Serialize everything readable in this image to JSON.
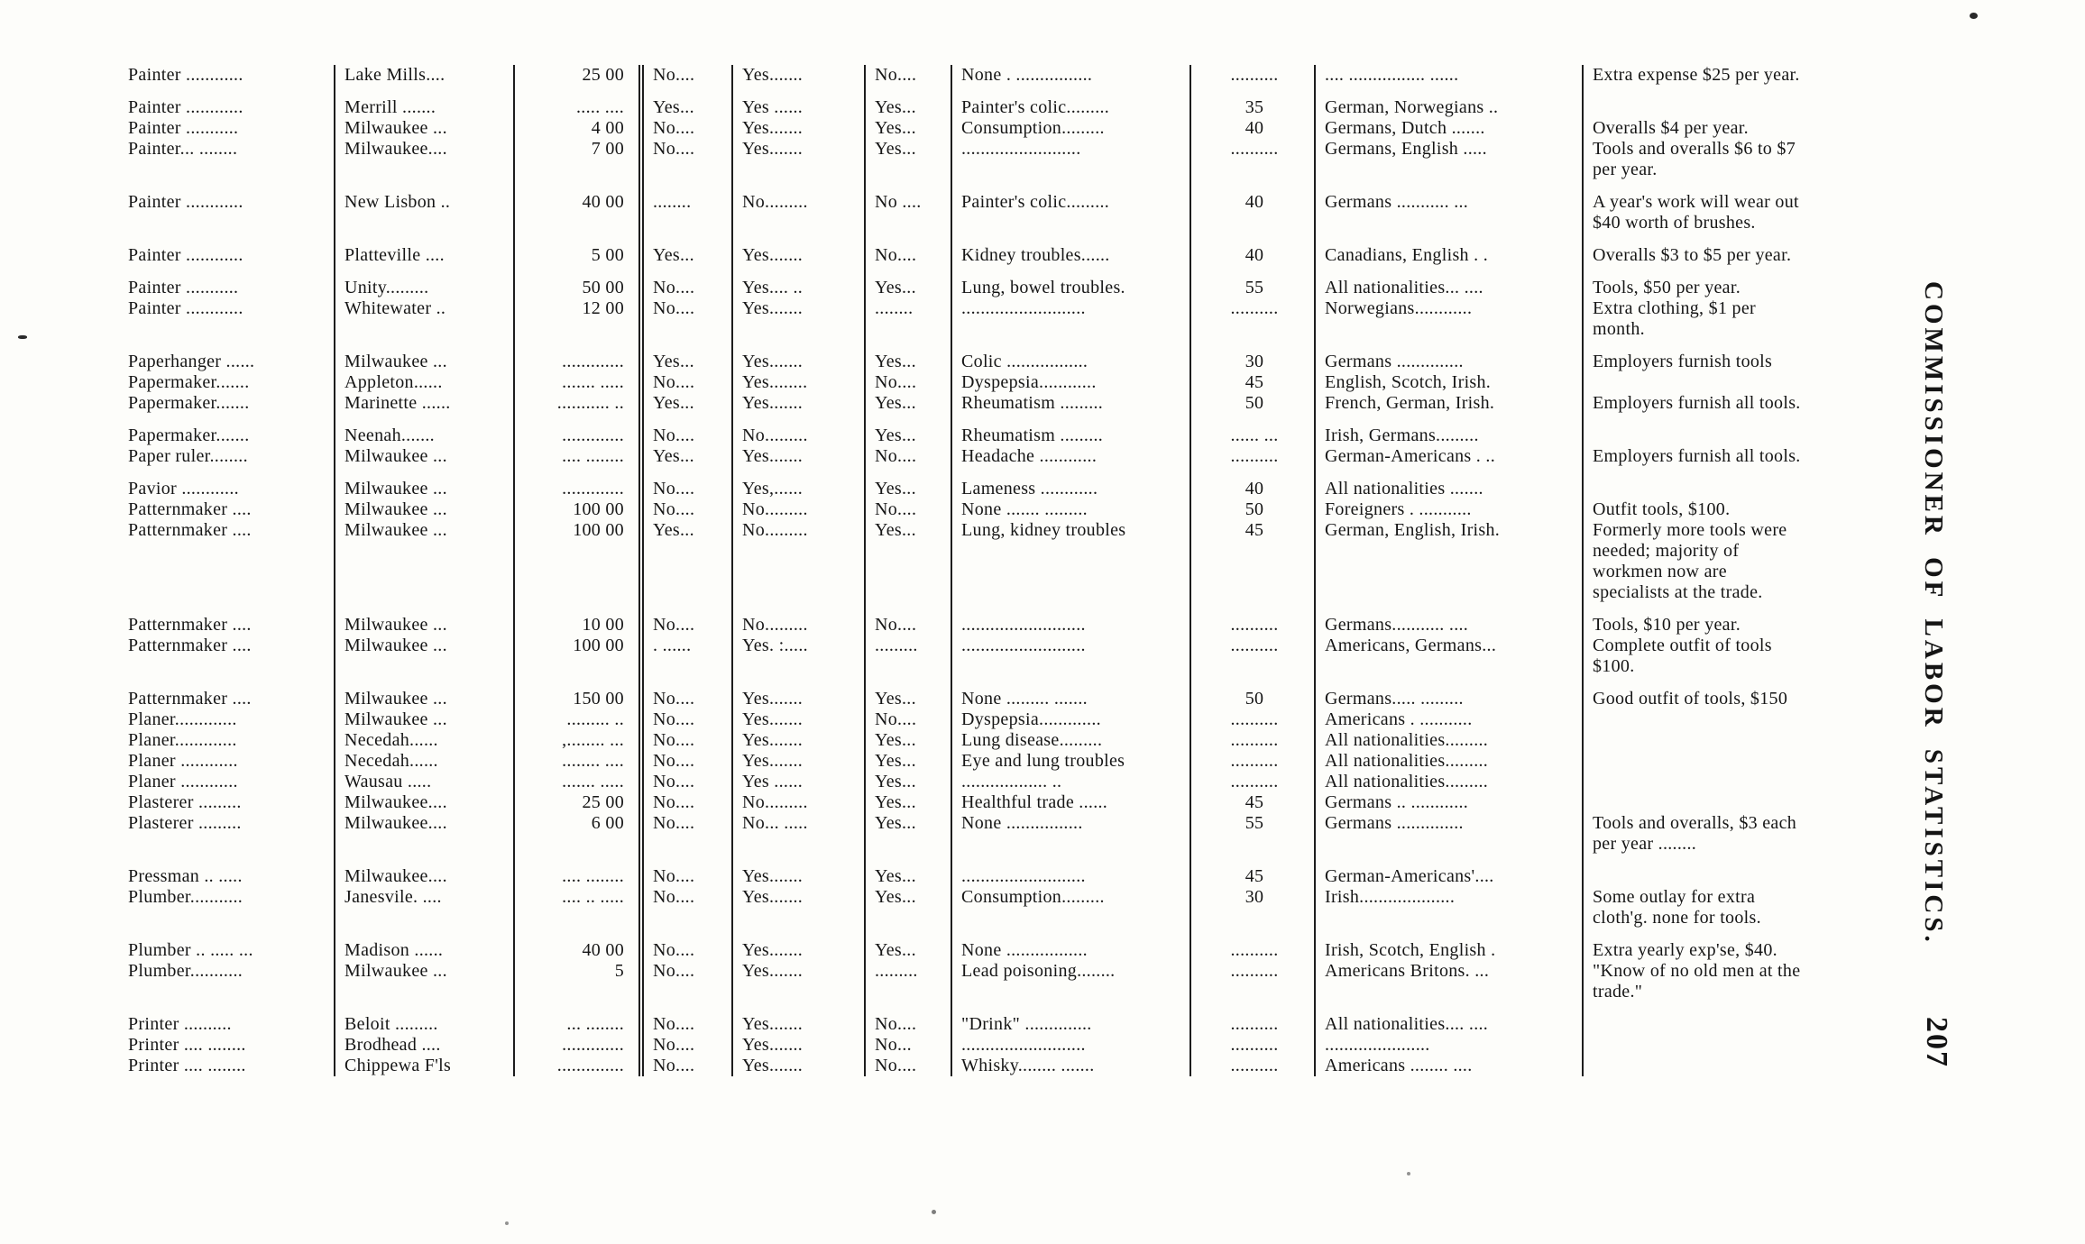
{
  "page": {
    "side_caption": "COMMISSIONER OF LABOR STATISTICS.",
    "page_number": "207"
  },
  "table": {
    "columns": [
      "occupation",
      "location",
      "amount",
      "q1",
      "q2",
      "q3",
      "disease",
      "age",
      "nationality",
      "remarks"
    ],
    "rows": [
      {
        "group_start": false,
        "cells": [
          "Painter ............",
          "Lake Mills....",
          "25 00",
          "No....",
          "Yes.......",
          "No....",
          "None . ................",
          "..........",
          ".... ................ ......",
          "Extra expense $25 per year."
        ]
      },
      {
        "group_start": true,
        "cells": [
          "Painter ............",
          "Merrill .......",
          "..... ....",
          "Yes...",
          "Yes ......",
          "Yes...",
          "Painter's colic.........",
          "35",
          "German, Norwegians ..",
          ""
        ]
      },
      {
        "group_start": false,
        "cells": [
          "Painter ...........",
          "Milwaukee ...",
          "4 00",
          "No....",
          "Yes.......",
          "Yes...",
          "Consumption.........",
          "40",
          "Germans, Dutch .......",
          "Overalls $4 per year."
        ]
      },
      {
        "group_start": false,
        "cells": [
          "Painter... ........",
          "Milwaukee....",
          "7 00",
          "No....",
          "Yes.......",
          "Yes...",
          ".........................",
          "..........",
          "Germans, English .....",
          "Tools and overalls $6 to $7 per year."
        ]
      },
      {
        "group_start": true,
        "cells": [
          "Painter ............",
          "New Lisbon ..",
          "40 00",
          "........",
          "No.........",
          "No ....",
          "Painter's colic.........",
          "40",
          "Germans ........... ...",
          "A year's work will wear out $40 worth of brushes."
        ]
      },
      {
        "group_start": true,
        "cells": [
          "Painter ............",
          "Platteville ....",
          "5 00",
          "Yes...",
          "Yes.......",
          "No....",
          "Kidney troubles......",
          "40",
          "Canadians, English . .",
          "Overalls $3 to $5 per year."
        ]
      },
      {
        "group_start": true,
        "cells": [
          "Painter ...........",
          "Unity.........",
          "50 00",
          "No....",
          "Yes.... ..",
          "Yes...",
          "Lung, bowel troubles.",
          "55",
          "All nationalities... ....",
          "Tools, $50 per year."
        ]
      },
      {
        "group_start": false,
        "cells": [
          "Painter ............",
          "Whitewater ..",
          "12 00",
          "No....",
          "Yes.......",
          "........",
          "..........................",
          "..........",
          "Norwegians............",
          "Extra clothing, $1 per month."
        ]
      },
      {
        "group_start": true,
        "cells": [
          "Paperhanger ......",
          "Milwaukee ...",
          ".............",
          "Yes...",
          "Yes.......",
          "Yes...",
          "Colic .................",
          "30",
          "Germans ..............",
          "Employers furnish tools"
        ]
      },
      {
        "group_start": false,
        "cells": [
          "Papermaker.......",
          "Appleton......",
          "....... .....",
          "No....",
          "Yes........",
          "No....",
          "Dyspepsia............",
          "45",
          "English, Scotch, Irish.",
          ""
        ]
      },
      {
        "group_start": false,
        "cells": [
          "Papermaker.......",
          "Marinette ......",
          "........... ..",
          "Yes...",
          "Yes.......",
          "Yes...",
          "Rheumatism .........",
          "50",
          "French, German, Irish.",
          "Employers furnish all tools."
        ]
      },
      {
        "group_start": true,
        "cells": [
          "Papermaker.......",
          "Neenah.......",
          ".............",
          "No....",
          "No.........",
          "Yes...",
          "Rheumatism .........",
          "...... ...",
          "Irish, Germans.........",
          ""
        ]
      },
      {
        "group_start": false,
        "cells": [
          "Paper ruler........",
          "Milwaukee ...",
          ".... ........",
          "Yes...",
          "Yes.......",
          "No....",
          "Headache ............",
          "..........",
          "German-Americans . ..",
          "Employers furnish all tools."
        ]
      },
      {
        "group_start": true,
        "cells": [
          "Pavior ............",
          "Milwaukee ...",
          ".............",
          "No....",
          "Yes,......",
          "Yes...",
          "Lameness ............",
          "40",
          "All nationalities .......",
          ""
        ]
      },
      {
        "group_start": false,
        "cells": [
          "Patternmaker ....",
          "Milwaukee ...",
          "100 00",
          "No....",
          "No.........",
          "No....",
          "None ....... .........",
          "50",
          "Foreigners . ...........",
          "Outfit tools, $100."
        ]
      },
      {
        "group_start": false,
        "cells": [
          "Patternmaker ....",
          "Milwaukee ...",
          "100 00",
          "Yes...",
          "No.........",
          "Yes...",
          "Lung, kidney troubles",
          "45",
          "German, English, Irish.",
          "Formerly more tools were needed; majority of workmen now are specialists at the trade."
        ]
      },
      {
        "group_start": true,
        "cells": [
          "Patternmaker ....",
          "Milwaukee ...",
          "10 00",
          "No....",
          "No.........",
          "No....",
          "..........................",
          "..........",
          "Germans........... ....",
          "Tools, $10 per year."
        ]
      },
      {
        "group_start": false,
        "cells": [
          "Patternmaker ....",
          "Milwaukee ...",
          "100 00",
          ". ......",
          "Yes. :.....",
          ".........",
          "..........................",
          "..........",
          "Americans, Germans...",
          "Complete outfit of tools $100."
        ]
      },
      {
        "group_start": true,
        "cells": [
          "Patternmaker ....",
          "Milwaukee ...",
          "150 00",
          "No....",
          "Yes.......",
          "Yes...",
          "None ......... .......",
          "50",
          "Germans..... .........",
          "Good outfit of tools, $150"
        ]
      },
      {
        "group_start": false,
        "cells": [
          "Planer.............",
          "Milwaukee ...",
          "......... ..",
          "No....",
          "Yes.......",
          "No....",
          "Dyspepsia.............",
          "..........",
          "Americans . ...........",
          ""
        ]
      },
      {
        "group_start": false,
        "cells": [
          "Planer.............",
          "Necedah......",
          ",........ ...",
          "No....",
          "Yes.......",
          "Yes...",
          "Lung disease.........",
          "..........",
          "All nationalities.........",
          ""
        ]
      },
      {
        "group_start": false,
        "cells": [
          "Planer ............",
          "Necedah......",
          "........ ....",
          "No....",
          "Yes.......",
          "Yes...",
          "Eye and lung troubles",
          "..........",
          "All nationalities.........",
          ""
        ]
      },
      {
        "group_start": false,
        "cells": [
          "Planer ............",
          "Wausau .....",
          "....... .....",
          "No....",
          "Yes ......",
          "Yes...",
          ".................. ..",
          "..........",
          "All nationalities.........",
          ""
        ]
      },
      {
        "group_start": false,
        "cells": [
          "Plasterer .........",
          "Milwaukee....",
          "25 00",
          "No....",
          "No.........",
          "Yes...",
          "Healthful trade ......",
          "45",
          "Germans .. ............",
          ""
        ]
      },
      {
        "group_start": false,
        "cells": [
          "Plasterer .........",
          "Milwaukee....",
          "6 00",
          "No....",
          "No... .....",
          "Yes...",
          "None ................",
          "55",
          "Germans ..............",
          "Tools and overalls, $3 each per year ........"
        ]
      },
      {
        "group_start": true,
        "cells": [
          "Pressman .. .....",
          "Milwaukee....",
          ".... ........",
          "No....",
          "Yes.......",
          "Yes...",
          "..........................",
          "45",
          "German-Americans'....",
          ""
        ]
      },
      {
        "group_start": false,
        "cells": [
          "Plumber...........",
          "Janesvile. ....",
          ".... .. .....",
          "No....",
          "Yes.......",
          "Yes...",
          "Consumption.........",
          "30",
          "Irish....................",
          "Some outlay for extra cloth'g. none for tools."
        ]
      },
      {
        "group_start": true,
        "cells": [
          "Plumber .. ..... ...",
          "Madison ......",
          "40 00",
          "No....",
          "Yes.......",
          "Yes...",
          "None .................",
          "..........",
          "Irish, Scotch, English .",
          "Extra yearly exp'se, $40."
        ]
      },
      {
        "group_start": false,
        "cells": [
          "Plumber...........",
          "Milwaukee ...",
          "5",
          "No....",
          "Yes.......",
          ".........",
          "Lead poisoning........",
          "..........",
          "Americans Britons. ...",
          "\"Know of no old men at the trade.\""
        ]
      },
      {
        "group_start": true,
        "cells": [
          "Printer ..........",
          "Beloit .........",
          "... ........",
          "No....",
          "Yes.......",
          "No....",
          "\"Drink\" ..............",
          "..........",
          "All nationalities.... ....",
          ""
        ]
      },
      {
        "group_start": false,
        "cells": [
          "Printer .... ........",
          "Brodhead ....",
          ".............",
          "No....",
          "Yes.......",
          "No...",
          "..........................",
          "..........",
          "......................",
          ""
        ]
      },
      {
        "group_start": false,
        "cells": [
          "Printer .... ........",
          "Chippewa F'ls",
          "..............",
          "No....",
          "Yes.......",
          "No....",
          "Whisky........ .......",
          "..........",
          "Americans ........ ....",
          ""
        ]
      }
    ]
  }
}
